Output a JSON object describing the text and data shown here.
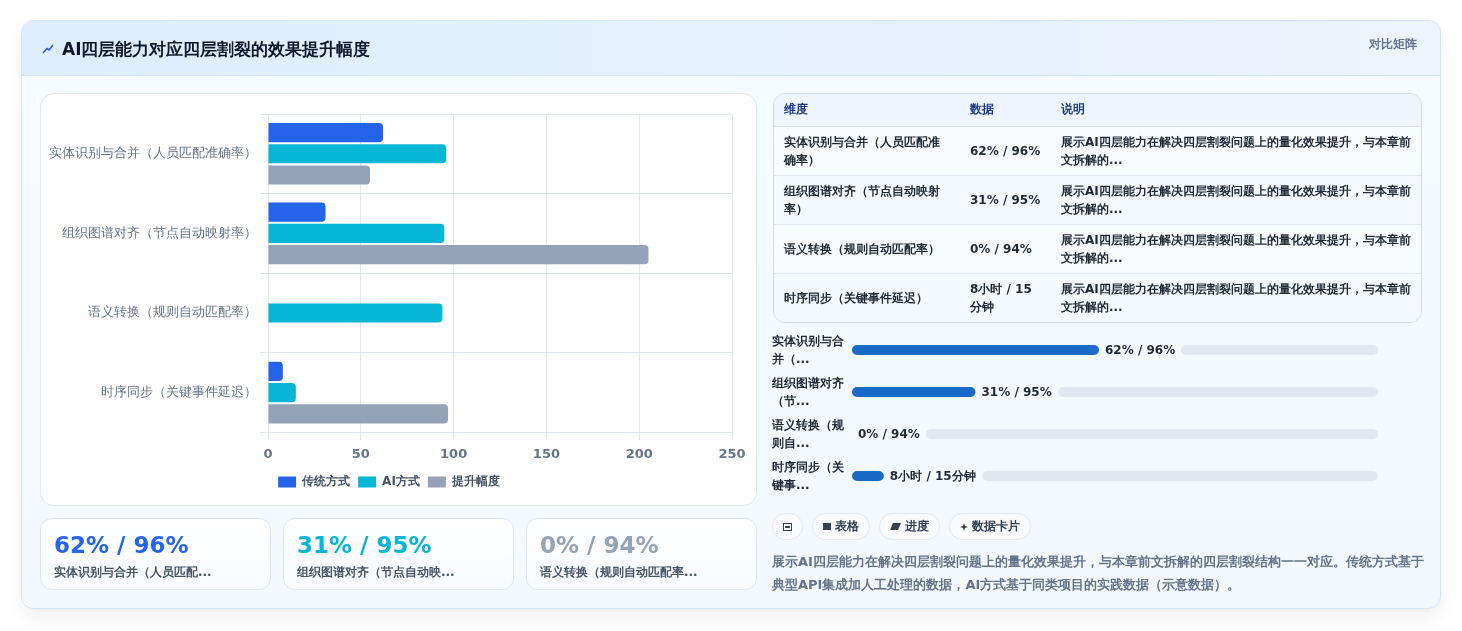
{
  "chart_data": [
    {
      "type": "bar",
      "orientation": "horizontal",
      "title": "AI四层能力对应四层割裂的效果提升幅度",
      "annotations": [
        "对比矩阵",
        "展示AI四层能力在解决四层割裂问题上的量化效果提升，与本章前文拆解的四层割裂结构一一对应。传统方式基于典型API集成加人工处理的数据，AI方式基于同类项目的实践数据（示意数据）。"
      ],
      "categories": [
        "实体识别与合并（人员匹配准确率）",
        "组织图谱对齐（节点自动映射率）",
        "语义转换（规则自动匹配率）",
        "时序同步（关键事件延迟）"
      ],
      "series": [
        {
          "name": "传统方式",
          "color": "#2563eb",
          "values": [
            62,
            31,
            0,
            8
          ]
        },
        {
          "name": "AI方式",
          "color": "#06b6d4",
          "values": [
            96,
            95,
            94,
            15
          ]
        },
        {
          "name": "提升幅度",
          "color": "#94a3b8",
          "values": [
            55,
            205,
            null,
            97
          ]
        }
      ],
      "xlim": [
        0,
        250
      ],
      "xticks": [
        0,
        50,
        100,
        150,
        200,
        250
      ],
      "grid": true,
      "legend": "bottom"
    },
    {
      "type": "other",
      "categories": [
        "维度",
        "数据",
        "说明"
      ],
      "annotations": [
        "实体识别与合并（人员匹配准确率）",
        "62% / 96%",
        "展示AI四层能力在解决四层割裂问题上的量化效果提升，与本章前文拆解的...",
        "组织图谱对齐（节点自动映射率）",
        "31% / 95%",
        "展示AI四层能力在解决四层割裂问题上的量化效果提升，与本章前文拆解的...",
        "语义转换（规则自动匹配率）",
        "0% / 94%",
        "展示AI四层能力在解决四层割裂问题上的量化效果提升，与本章前文拆解的...",
        "时序同步（关键事件延迟）",
        "8小时 / 15分钟",
        "展示AI四层能力在解决四层割裂问题上的量化效果提升，与本章前文拆解的..."
      ]
    },
    {
      "type": "bar",
      "orientation": "horizontal",
      "tick_labels": "y",
      "categories": [
        "实体识别与合并（...",
        "组织图谱对齐（节...",
        "语义转换（规则自...",
        "时序同步（关键事..."
      ],
      "values": [
        62,
        31,
        0,
        8
      ],
      "color": "#1a6ac8",
      "value_labels": [
        "62% / 96%",
        "31% / 95%",
        "0% / 94%",
        "8小时 / 15分钟"
      ]
    },
    {
      "type": "other",
      "annotations": [
        "表格",
        "进度",
        "数据卡片"
      ]
    },
    {
      "type": "other",
      "categories": [
        "实体识别与合并（人员匹配...",
        "组织图谱对齐（节点自动映...",
        "语义转换（规则自动匹配率..."
      ],
      "annotations": [
        "62% / 96%",
        "31% / 95%",
        "0% / 94%"
      ]
    }
  ]
}
